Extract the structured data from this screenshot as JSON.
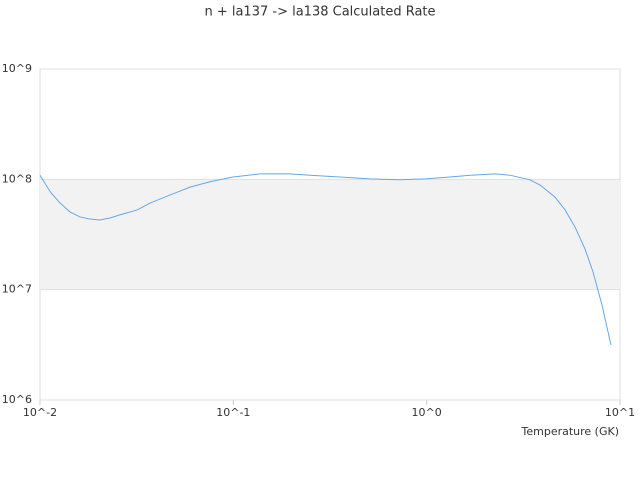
{
  "chart_data": {
    "type": "line",
    "title": "n + la137 -> la138 Calculated Rate",
    "x_label": "Temperature (GK)",
    "x_scale": "log",
    "y_scale": "log",
    "grid": true,
    "band_color": "#f2f2f2",
    "xlim": [
      0.01,
      10
    ],
    "ylim": [
      1000000,
      1000000000
    ],
    "xticks": [
      {
        "value": 0.01,
        "label": "10^-2"
      },
      {
        "value": 0.1,
        "label": "10^-1"
      },
      {
        "value": 1,
        "label": "10^0"
      },
      {
        "value": 10,
        "label": "10^1"
      }
    ],
    "yticks": [
      {
        "value": 1000000,
        "label": "10^6"
      },
      {
        "value": 10000000,
        "label": "10^7"
      },
      {
        "value": 100000000,
        "label": "10^8"
      },
      {
        "value": 1000000000,
        "label": "10^9"
      }
    ],
    "x": [
      0.01,
      0.0113,
      0.0127,
      0.0143,
      0.0161,
      0.0181,
      0.0204,
      0.023,
      0.0259,
      0.0318,
      0.0371,
      0.047,
      0.0597,
      0.0757,
      0.0995,
      0.137,
      0.196,
      0.249,
      0.356,
      0.509,
      0.728,
      0.98,
      1.32,
      1.68,
      2.26,
      2.7,
      3.42,
      3.85,
      4.61,
      5.2,
      5.85,
      6.59,
      7.25,
      8.07,
      8.98
    ],
    "series": [
      {
        "color": "#64a8e8",
        "values": [
          109000000,
          77000000,
          61000000,
          50600000,
          45600000,
          43700000,
          42800000,
          44600000,
          47600000,
          52800000,
          61000000,
          72000000,
          85000000,
          95000000,
          105000000,
          112000000,
          112000000,
          109000000,
          105000000,
          101000000,
          99000000,
          101000000,
          105000000,
          109000000,
          112000000,
          109000000,
          99000000,
          89000000,
          69000000,
          52800000,
          37000000,
          23400000,
          14500000,
          7260000,
          3150000
        ]
      }
    ]
  }
}
